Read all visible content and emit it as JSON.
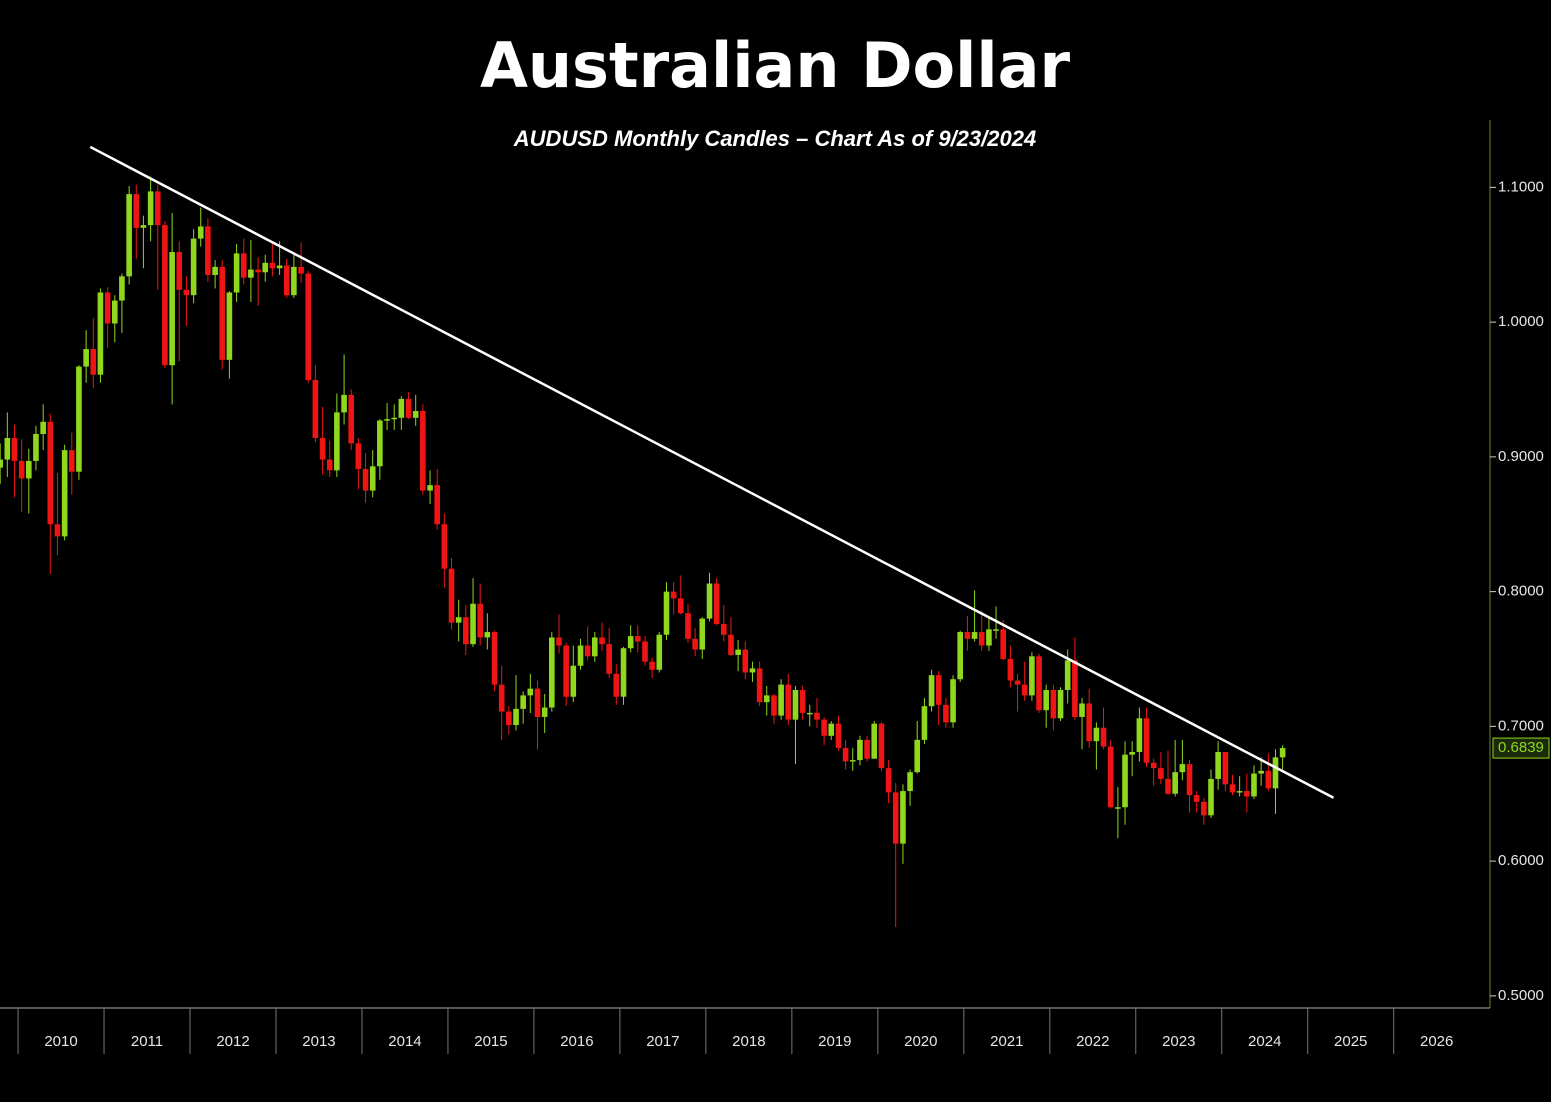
{
  "chart_data": {
    "type": "candlestick",
    "title": "Australian Dollar",
    "subtitle": "AUDUSD Monthly Candles – Chart As of 9/23/2024",
    "up_color": "#8fd81e",
    "down_color": "#f01515",
    "trendline_color": "#ffffff",
    "xlim": [
      2009.79,
      2027.12
    ],
    "xticks": [
      2010,
      2011,
      2012,
      2013,
      2014,
      2015,
      2016,
      2017,
      2018,
      2019,
      2020,
      2021,
      2022,
      2023,
      2024,
      2025,
      2026
    ],
    "ylim": [
      0.491,
      1.15
    ],
    "yticks": [
      {
        "value": 0.5,
        "label": "0.5000"
      },
      {
        "value": 0.6,
        "label": "0.6000"
      },
      {
        "value": 0.7,
        "label": "0.7000"
      },
      {
        "value": 0.8,
        "label": "0.8000"
      },
      {
        "value": 0.9,
        "label": "0.9000"
      },
      {
        "value": 1.0,
        "label": "1.0000"
      },
      {
        "value": 1.1,
        "label": "1.1000"
      }
    ],
    "last_price": 0.6839,
    "trendline": {
      "x": [
        2010.84,
        2025.3
      ],
      "y": [
        1.13,
        0.647
      ]
    },
    "x": [
      2009.792,
      2009.875,
      2009.958,
      2010.042,
      2010.125,
      2010.208,
      2010.292,
      2010.375,
      2010.458,
      2010.542,
      2010.625,
      2010.708,
      2010.792,
      2010.875,
      2010.958,
      2011.042,
      2011.125,
      2011.208,
      2011.292,
      2011.375,
      2011.458,
      2011.542,
      2011.625,
      2011.708,
      2011.792,
      2011.875,
      2011.958,
      2012.042,
      2012.125,
      2012.208,
      2012.292,
      2012.375,
      2012.458,
      2012.542,
      2012.625,
      2012.708,
      2012.792,
      2012.875,
      2012.958,
      2013.042,
      2013.125,
      2013.208,
      2013.292,
      2013.375,
      2013.458,
      2013.542,
      2013.625,
      2013.708,
      2013.792,
      2013.875,
      2013.958,
      2014.042,
      2014.125,
      2014.208,
      2014.292,
      2014.375,
      2014.458,
      2014.542,
      2014.625,
      2014.708,
      2014.792,
      2014.875,
      2014.958,
      2015.042,
      2015.125,
      2015.208,
      2015.292,
      2015.375,
      2015.458,
      2015.542,
      2015.625,
      2015.708,
      2015.792,
      2015.875,
      2015.958,
      2016.042,
      2016.125,
      2016.208,
      2016.292,
      2016.375,
      2016.458,
      2016.542,
      2016.625,
      2016.708,
      2016.792,
      2016.875,
      2016.958,
      2017.042,
      2017.125,
      2017.208,
      2017.292,
      2017.375,
      2017.458,
      2017.542,
      2017.625,
      2017.708,
      2017.792,
      2017.875,
      2017.958,
      2018.042,
      2018.125,
      2018.208,
      2018.292,
      2018.375,
      2018.458,
      2018.542,
      2018.625,
      2018.708,
      2018.792,
      2018.875,
      2018.958,
      2019.042,
      2019.125,
      2019.208,
      2019.292,
      2019.375,
      2019.458,
      2019.542,
      2019.625,
      2019.708,
      2019.792,
      2019.875,
      2019.958,
      2020.042,
      2020.125,
      2020.208,
      2020.292,
      2020.375,
      2020.458,
      2020.542,
      2020.625,
      2020.708,
      2020.792,
      2020.875,
      2020.958,
      2021.042,
      2021.125,
      2021.208,
      2021.292,
      2021.375,
      2021.458,
      2021.542,
      2021.625,
      2021.708,
      2021.792,
      2021.875,
      2021.958,
      2022.042,
      2022.125,
      2022.208,
      2022.292,
      2022.375,
      2022.458,
      2022.542,
      2022.625,
      2022.708,
      2022.792,
      2022.875,
      2022.958,
      2023.042,
      2023.125,
      2023.208,
      2023.292,
      2023.375,
      2023.458,
      2023.542,
      2023.625,
      2023.708,
      2023.792,
      2023.875,
      2023.958,
      2024.042,
      2024.125,
      2024.208,
      2024.292,
      2024.375,
      2024.458,
      2024.542,
      2024.625,
      2024.708
    ],
    "open": [
      0.892,
      0.898,
      0.914,
      0.897,
      0.884,
      0.897,
      0.917,
      0.926,
      0.85,
      0.841,
      0.905,
      0.889,
      0.967,
      0.98,
      0.961,
      1.022,
      0.999,
      1.016,
      1.034,
      1.095,
      1.07,
      1.072,
      1.097,
      1.072,
      0.968,
      1.052,
      1.024,
      1.02,
      1.062,
      1.071,
      1.035,
      1.041,
      0.972,
      1.022,
      1.051,
      1.033,
      1.039,
      1.037,
      1.044,
      1.04,
      1.042,
      1.02,
      1.041,
      1.036,
      0.957,
      0.914,
      0.898,
      0.89,
      0.933,
      0.946,
      0.91,
      0.891,
      0.875,
      0.893,
      0.927,
      0.928,
      0.929,
      0.943,
      0.929,
      0.934,
      0.875,
      0.879,
      0.85,
      0.817,
      0.777,
      0.781,
      0.761,
      0.791,
      0.766,
      0.77,
      0.731,
      0.711,
      0.701,
      0.713,
      0.723,
      0.728,
      0.707,
      0.714,
      0.766,
      0.76,
      0.722,
      0.745,
      0.76,
      0.752,
      0.766,
      0.761,
      0.739,
      0.722,
      0.758,
      0.767,
      0.763,
      0.748,
      0.742,
      0.768,
      0.8,
      0.795,
      0.784,
      0.765,
      0.757,
      0.78,
      0.806,
      0.776,
      0.768,
      0.753,
      0.757,
      0.74,
      0.743,
      0.718,
      0.723,
      0.708,
      0.731,
      0.705,
      0.727,
      0.71,
      0.71,
      0.705,
      0.693,
      0.702,
      0.684,
      0.674,
      0.675,
      0.69,
      0.676,
      0.702,
      0.669,
      0.651,
      0.613,
      0.652,
      0.666,
      0.69,
      0.715,
      0.738,
      0.716,
      0.703,
      0.735,
      0.77,
      0.765,
      0.77,
      0.76,
      0.772,
      0.772,
      0.75,
      0.734,
      0.731,
      0.723,
      0.752,
      0.712,
      0.727,
      0.706,
      0.727,
      0.749,
      0.707,
      0.717,
      0.689,
      0.699,
      0.685,
      0.64,
      0.64,
      0.679,
      0.681,
      0.706,
      0.673,
      0.669,
      0.661,
      0.65,
      0.666,
      0.672,
      0.649,
      0.644,
      0.634,
      0.661,
      0.681,
      0.657,
      0.651,
      0.652,
      0.648,
      0.665,
      0.667,
      0.654,
      0.677
    ],
    "high": [
      0.91,
      0.933,
      0.924,
      0.913,
      0.906,
      0.923,
      0.939,
      0.932,
      0.888,
      0.909,
      0.918,
      0.968,
      0.994,
      1.003,
      1.025,
      1.026,
      1.02,
      1.036,
      1.101,
      1.102,
      1.079,
      1.108,
      1.102,
      1.075,
      1.081,
      1.06,
      1.034,
      1.069,
      1.085,
      1.077,
      1.046,
      1.046,
      1.023,
      1.058,
      1.062,
      1.061,
      1.048,
      1.05,
      1.059,
      1.06,
      1.047,
      1.051,
      1.059,
      1.038,
      0.968,
      0.937,
      0.912,
      0.947,
      0.976,
      0.95,
      0.914,
      0.903,
      0.905,
      0.928,
      0.94,
      0.939,
      0.945,
      0.948,
      0.946,
      0.939,
      0.89,
      0.891,
      0.858,
      0.825,
      0.794,
      0.79,
      0.81,
      0.806,
      0.784,
      0.771,
      0.745,
      0.715,
      0.738,
      0.726,
      0.739,
      0.734,
      0.724,
      0.77,
      0.783,
      0.762,
      0.76,
      0.765,
      0.774,
      0.77,
      0.777,
      0.773,
      0.746,
      0.759,
      0.775,
      0.775,
      0.767,
      0.751,
      0.77,
      0.807,
      0.807,
      0.812,
      0.791,
      0.773,
      0.781,
      0.814,
      0.81,
      0.79,
      0.781,
      0.764,
      0.763,
      0.748,
      0.748,
      0.73,
      0.724,
      0.735,
      0.739,
      0.73,
      0.73,
      0.716,
      0.721,
      0.707,
      0.704,
      0.708,
      0.69,
      0.684,
      0.693,
      0.693,
      0.704,
      0.703,
      0.675,
      0.658,
      0.657,
      0.668,
      0.704,
      0.721,
      0.742,
      0.741,
      0.721,
      0.738,
      0.771,
      0.782,
      0.801,
      0.786,
      0.782,
      0.789,
      0.779,
      0.76,
      0.739,
      0.748,
      0.755,
      0.754,
      0.731,
      0.731,
      0.729,
      0.757,
      0.766,
      0.721,
      0.728,
      0.703,
      0.714,
      0.69,
      0.655,
      0.689,
      0.689,
      0.714,
      0.714,
      0.676,
      0.681,
      0.682,
      0.69,
      0.69,
      0.675,
      0.652,
      0.647,
      0.668,
      0.689,
      0.681,
      0.664,
      0.663,
      0.665,
      0.671,
      0.677,
      0.68,
      0.683,
      0.686
    ],
    "low": [
      0.88,
      0.885,
      0.87,
      0.859,
      0.858,
      0.89,
      0.905,
      0.813,
      0.827,
      0.838,
      0.872,
      0.883,
      0.955,
      0.951,
      0.955,
      0.981,
      0.985,
      0.992,
      1.028,
      1.047,
      1.04,
      1.06,
      1.024,
      0.966,
      0.939,
      0.971,
      0.997,
      1.014,
      1.056,
      1.03,
      1.025,
      0.965,
      0.958,
      1.015,
      1.028,
      1.015,
      1.012,
      1.03,
      1.034,
      1.035,
      1.018,
      1.018,
      1.029,
      0.955,
      0.911,
      0.887,
      0.885,
      0.885,
      0.924,
      0.905,
      0.876,
      0.866,
      0.87,
      0.883,
      0.92,
      0.92,
      0.92,
      0.928,
      0.923,
      0.872,
      0.865,
      0.846,
      0.803,
      0.772,
      0.763,
      0.753,
      0.759,
      0.76,
      0.757,
      0.726,
      0.69,
      0.694,
      0.697,
      0.702,
      0.71,
      0.683,
      0.695,
      0.711,
      0.754,
      0.715,
      0.718,
      0.742,
      0.749,
      0.748,
      0.756,
      0.736,
      0.716,
      0.716,
      0.755,
      0.755,
      0.745,
      0.736,
      0.74,
      0.764,
      0.783,
      0.783,
      0.762,
      0.752,
      0.75,
      0.778,
      0.775,
      0.763,
      0.752,
      0.741,
      0.735,
      0.733,
      0.715,
      0.708,
      0.702,
      0.705,
      0.701,
      0.672,
      0.705,
      0.7,
      0.699,
      0.686,
      0.69,
      0.682,
      0.668,
      0.667,
      0.671,
      0.674,
      0.676,
      0.667,
      0.643,
      0.551,
      0.598,
      0.641,
      0.665,
      0.687,
      0.711,
      0.701,
      0.699,
      0.699,
      0.733,
      0.756,
      0.763,
      0.756,
      0.756,
      0.765,
      0.749,
      0.729,
      0.711,
      0.719,
      0.719,
      0.71,
      0.699,
      0.697,
      0.704,
      0.717,
      0.705,
      0.683,
      0.684,
      0.668,
      0.683,
      0.639,
      0.617,
      0.627,
      0.663,
      0.674,
      0.67,
      0.656,
      0.657,
      0.649,
      0.648,
      0.66,
      0.636,
      0.636,
      0.627,
      0.632,
      0.653,
      0.652,
      0.649,
      0.648,
      0.636,
      0.646,
      0.656,
      0.652,
      0.635,
      0.668
    ],
    "close": [
      0.898,
      0.914,
      0.897,
      0.884,
      0.897,
      0.917,
      0.926,
      0.85,
      0.841,
      0.905,
      0.889,
      0.967,
      0.98,
      0.961,
      1.022,
      0.999,
      1.016,
      1.034,
      1.095,
      1.07,
      1.072,
      1.097,
      1.072,
      0.968,
      1.052,
      1.024,
      1.02,
      1.062,
      1.071,
      1.035,
      1.041,
      0.972,
      1.022,
      1.051,
      1.033,
      1.039,
      1.037,
      1.044,
      1.04,
      1.042,
      1.02,
      1.041,
      1.036,
      0.957,
      0.914,
      0.898,
      0.89,
      0.933,
      0.946,
      0.91,
      0.891,
      0.875,
      0.893,
      0.927,
      0.928,
      0.929,
      0.943,
      0.929,
      0.934,
      0.875,
      0.879,
      0.85,
      0.817,
      0.777,
      0.781,
      0.761,
      0.791,
      0.766,
      0.77,
      0.731,
      0.711,
      0.701,
      0.713,
      0.723,
      0.728,
      0.707,
      0.714,
      0.766,
      0.76,
      0.722,
      0.745,
      0.76,
      0.752,
      0.766,
      0.761,
      0.739,
      0.722,
      0.758,
      0.767,
      0.763,
      0.748,
      0.742,
      0.768,
      0.8,
      0.795,
      0.784,
      0.765,
      0.757,
      0.78,
      0.806,
      0.776,
      0.768,
      0.753,
      0.757,
      0.74,
      0.743,
      0.718,
      0.723,
      0.708,
      0.731,
      0.705,
      0.727,
      0.71,
      0.71,
      0.705,
      0.693,
      0.702,
      0.684,
      0.674,
      0.675,
      0.69,
      0.676,
      0.702,
      0.669,
      0.651,
      0.613,
      0.652,
      0.666,
      0.69,
      0.715,
      0.738,
      0.716,
      0.703,
      0.735,
      0.77,
      0.765,
      0.77,
      0.76,
      0.772,
      0.772,
      0.75,
      0.734,
      0.731,
      0.723,
      0.752,
      0.712,
      0.727,
      0.706,
      0.727,
      0.749,
      0.707,
      0.717,
      0.689,
      0.699,
      0.685,
      0.64,
      0.64,
      0.679,
      0.681,
      0.706,
      0.673,
      0.669,
      0.661,
      0.65,
      0.666,
      0.672,
      0.649,
      0.644,
      0.634,
      0.661,
      0.681,
      0.657,
      0.651,
      0.652,
      0.648,
      0.665,
      0.667,
      0.654,
      0.677,
      0.6839
    ]
  }
}
